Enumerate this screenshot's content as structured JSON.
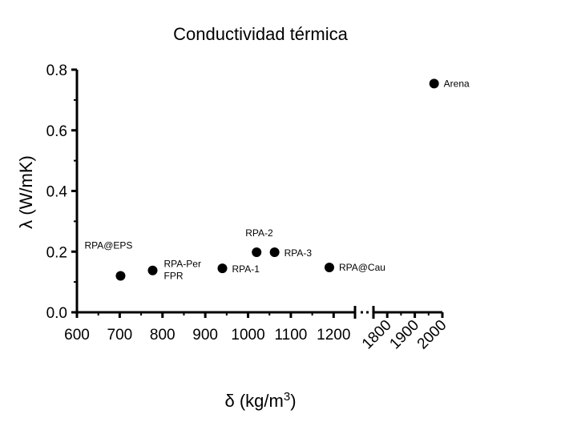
{
  "chart_data": {
    "type": "scatter",
    "title": "Conductividad térmica",
    "xlabel": "δ (kg/m",
    "xlabel_sup": "3",
    "xlabel_end": ")",
    "ylabel": "λ (W/mK)",
    "xlim": [
      600,
      2000
    ],
    "x_break": [
      1250,
      1750
    ],
    "ylim": [
      0.0,
      0.8
    ],
    "grid": false,
    "legend": "none",
    "x_ticks_left": [
      "600",
      "700",
      "800",
      "900",
      "1000",
      "1100",
      "1200"
    ],
    "x_ticks_right": [
      "1800",
      "1900",
      "2000"
    ],
    "y_ticks": [
      "0.0",
      "0.2",
      "0.4",
      "0.6",
      "0.8"
    ],
    "marker_color": "#000000",
    "points": [
      {
        "label": "RPA@EPS",
        "x": 702,
        "y": 0.12
      },
      {
        "label": "RPA-Per",
        "label2": "FPR",
        "x": 777,
        "y": 0.138
      },
      {
        "label": "RPA-1",
        "x": 940,
        "y": 0.145
      },
      {
        "label": "RPA-2",
        "x": 1020,
        "y": 0.198
      },
      {
        "label": "RPA-3",
        "x": 1062,
        "y": 0.198
      },
      {
        "label": "RPA@Cau",
        "x": 1190,
        "y": 0.148
      },
      {
        "label": "Arena",
        "x": 1970,
        "y": 0.754
      }
    ]
  }
}
